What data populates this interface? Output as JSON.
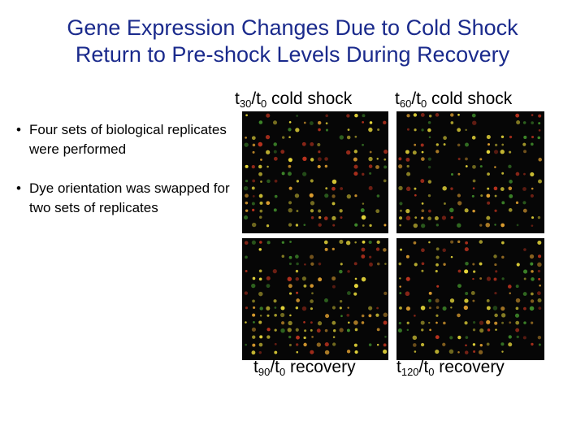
{
  "slide": {
    "title_line1": "Gene Expression Changes Due to Cold Shock",
    "title_line2": "Return to Pre-shock Levels During Recovery",
    "bullet_marker": "•",
    "bullets": [
      "Four sets of biological replicates were performed",
      "Dye orientation was swapped for two sets of replicates"
    ],
    "labels": {
      "t30": {
        "t": "t",
        "sub1": "30",
        "slash": "/t",
        "sub2": "0",
        "rest": " cold shock"
      },
      "t60": {
        "t": "t",
        "sub1": "60",
        "slash": "/t",
        "sub2": "0",
        "rest": " cold shock"
      },
      "t90": {
        "t": "t",
        "sub1": "90",
        "slash": "/t",
        "sub2": "0",
        "rest": " recovery"
      },
      "t120": {
        "t": "t",
        "sub1": "120",
        "slash": "/t",
        "sub2": "0",
        "rest": " recovery"
      }
    }
  },
  "colors": {
    "title": "#1a2a8c",
    "array_bg": "#060606",
    "spot_yellow": "#e8d83a",
    "spot_green": "#3f8a2a",
    "spot_red": "#b8321e",
    "spot_orange": "#e0a030"
  }
}
